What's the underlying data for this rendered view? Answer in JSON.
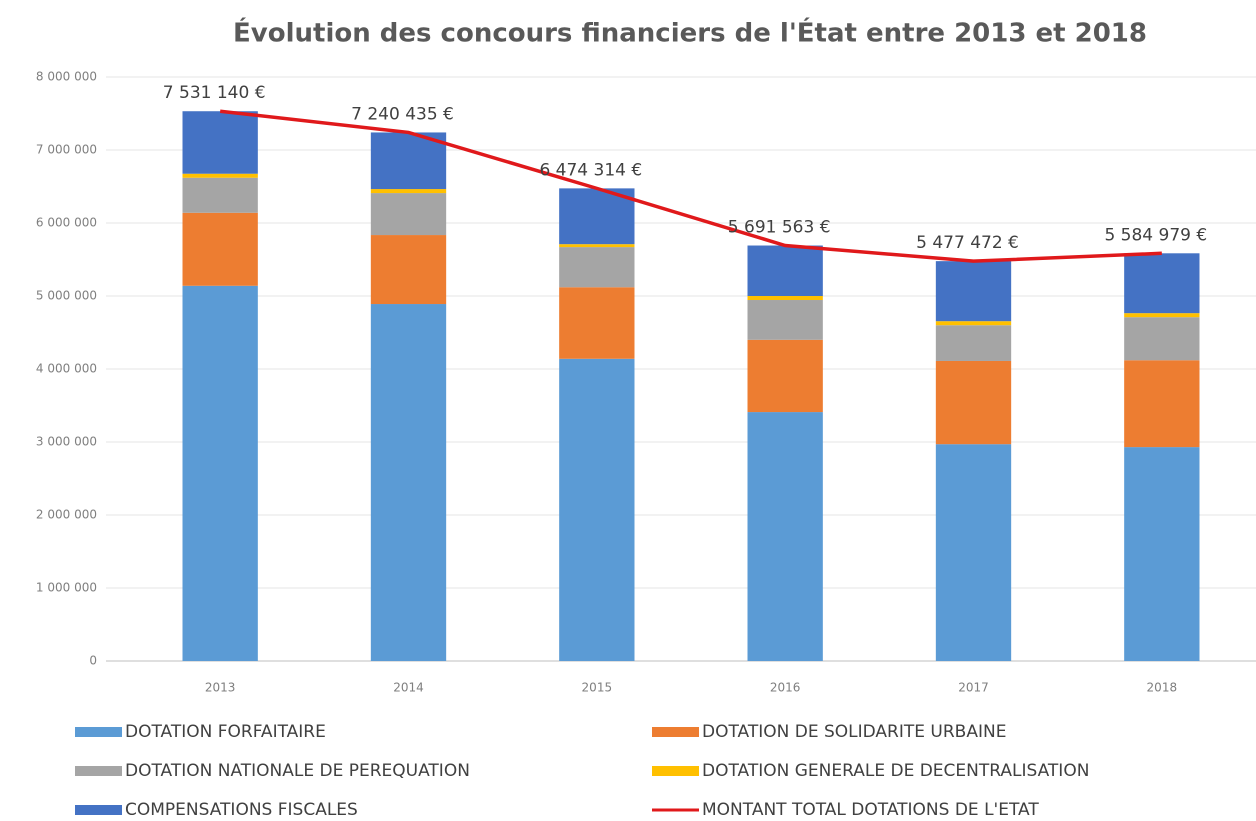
{
  "chart_data": {
    "type": "bar",
    "stacked": true,
    "title": "Évolution des concours financiers de l'État entre 2013 et 2018",
    "categories": [
      "2013",
      "2014",
      "2015",
      "2016",
      "2017",
      "2018"
    ],
    "series": [
      {
        "name": "DOTATION FORFAITAIRE",
        "color": "#5b9bd5",
        "values": [
          5140000,
          4890000,
          4140000,
          3410000,
          2970000,
          2930000
        ]
      },
      {
        "name": "DOTATION DE SOLIDARITE URBAINE",
        "color": "#ed7d31",
        "values": [
          1000000,
          945000,
          980000,
          990000,
          1140000,
          1190000
        ]
      },
      {
        "name": "DOTATION NATIONALE DE PEREQUATION",
        "color": "#a5a5a5",
        "values": [
          480000,
          575000,
          550000,
          545000,
          490000,
          590000
        ]
      },
      {
        "name": "DOTATION GENERALE DE DECENTRALISATION",
        "color": "#ffc000",
        "values": [
          55000,
          55000,
          40000,
          55000,
          55000,
          55000
        ]
      },
      {
        "name": "COMPENSATIONS FISCALES",
        "color": "#4472c4",
        "values": [
          856140,
          775435,
          764314,
          691563,
          822472,
          819979
        ]
      },
      {
        "name": "MONTANT TOTAL DOTATIONS DE L'ETAT",
        "color": "#e0191b",
        "type": "line",
        "values": [
          7531140,
          7240435,
          6474314,
          5691563,
          5477472,
          5584979
        ],
        "value_labels": [
          "7 531 140 €",
          "7 240 435 €",
          "6 474 314 €",
          "5 691 563 €",
          "5 477 472 €",
          "5 584 979 €"
        ]
      }
    ],
    "ylim": [
      0,
      8000000
    ],
    "yticks": [
      0,
      {
        "value": 1000000,
        "label": "1 000 000"
      },
      {
        "value": 2000000,
        "label": "2 000 000"
      },
      {
        "value": 3000000,
        "label": "3 000 000"
      },
      {
        "value": 4000000,
        "label": "4 000 000"
      },
      {
        "value": 5000000,
        "label": "5 000 000"
      },
      {
        "value": 6000000,
        "label": "6 000 000"
      },
      {
        "value": 7000000,
        "label": "7 000 000"
      },
      {
        "value": 8000000,
        "label": "8 000 000"
      }
    ],
    "grid": true,
    "legend": "bottom"
  }
}
